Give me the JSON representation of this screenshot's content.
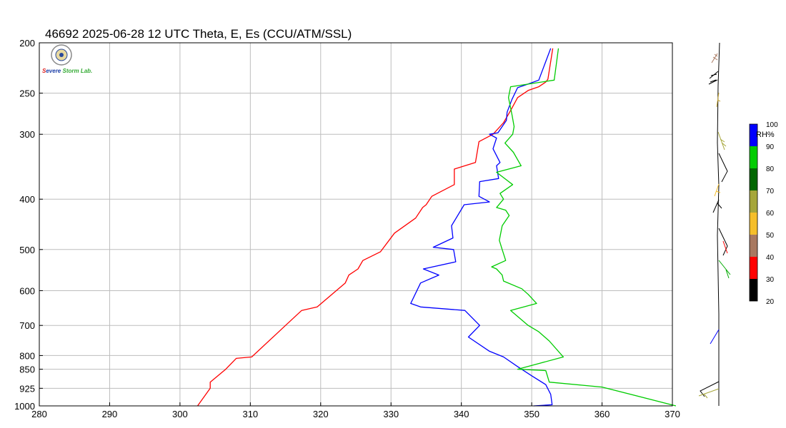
{
  "chart_data": {
    "type": "line",
    "title": "46692  2025-06-28 12 UTC  Theta, E, Es (CCU/ATM/SSL)",
    "xlabel": "",
    "ylabel": "",
    "xlim": [
      280,
      370
    ],
    "ylim": [
      1000,
      200
    ],
    "y_scale": "log",
    "grid": true,
    "x_ticks": [
      "280",
      "290",
      "300",
      "310",
      "320",
      "330",
      "340",
      "350",
      "360",
      "370"
    ],
    "y_ticks": [
      "200",
      "250",
      "300",
      "400",
      "500",
      "600",
      "700",
      "800",
      "850",
      "925",
      "1000"
    ],
    "series": [
      {
        "color": "#ff0000",
        "points": [
          [
            302.5,
            1000
          ],
          [
            304.3,
            925
          ],
          [
            304.3,
            900
          ],
          [
            306.5,
            850
          ],
          [
            308,
            810
          ],
          [
            310.2,
            805
          ],
          [
            315,
            700
          ],
          [
            317.3,
            655
          ],
          [
            319.5,
            645
          ],
          [
            323.5,
            580
          ],
          [
            324,
            560
          ],
          [
            325.3,
            545
          ],
          [
            326,
            525
          ],
          [
            328.5,
            505
          ],
          [
            330.5,
            465
          ],
          [
            333.5,
            435
          ],
          [
            334.5,
            415
          ],
          [
            335,
            410
          ],
          [
            335.8,
            395
          ],
          [
            339,
            375
          ],
          [
            339,
            350
          ],
          [
            342,
            340
          ],
          [
            342.5,
            310
          ],
          [
            344.5,
            300
          ],
          [
            346,
            285
          ],
          [
            347,
            270
          ],
          [
            348,
            255
          ],
          [
            349.5,
            247
          ],
          [
            351,
            243
          ],
          [
            352,
            238
          ],
          [
            352.3,
            235
          ],
          [
            353,
            205
          ]
        ]
      },
      {
        "color": "#0000ff",
        "points": [
          [
            350.3,
            1000
          ],
          [
            352.9,
            995
          ],
          [
            352.7,
            950
          ],
          [
            352,
            910
          ],
          [
            350,
            875
          ],
          [
            348,
            840
          ],
          [
            346,
            805
          ],
          [
            344,
            785
          ],
          [
            341,
            737
          ],
          [
            342.6,
            700
          ],
          [
            340.5,
            655
          ],
          [
            334.2,
            645
          ],
          [
            332.8,
            635
          ],
          [
            334.2,
            580
          ],
          [
            336.8,
            560
          ],
          [
            334.6,
            545
          ],
          [
            339.2,
            528
          ],
          [
            338.9,
            500
          ],
          [
            336,
            495
          ],
          [
            338.8,
            475
          ],
          [
            338.6,
            450
          ],
          [
            340.4,
            410
          ],
          [
            344,
            405
          ],
          [
            342.5,
            395
          ],
          [
            342.6,
            370
          ],
          [
            345.3,
            365
          ],
          [
            345,
            345
          ],
          [
            345.5,
            340
          ],
          [
            344.5,
            320
          ],
          [
            345,
            305
          ],
          [
            344,
            300
          ],
          [
            345.2,
            298
          ],
          [
            346.4,
            282
          ],
          [
            346.5,
            272
          ],
          [
            347.2,
            257
          ],
          [
            348,
            244
          ],
          [
            349.5,
            240
          ],
          [
            351,
            236
          ],
          [
            352.7,
            205
          ]
        ]
      },
      {
        "color": "#00cc00",
        "points": [
          [
            370.5,
            1000
          ],
          [
            360,
            920
          ],
          [
            352.5,
            900
          ],
          [
            352,
            855
          ],
          [
            348,
            850
          ],
          [
            354.5,
            805
          ],
          [
            352.5,
            750
          ],
          [
            351,
            720
          ],
          [
            349.5,
            700
          ],
          [
            347,
            655
          ],
          [
            350.7,
            635
          ],
          [
            349.5,
            610
          ],
          [
            348.6,
            595
          ],
          [
            346,
            575
          ],
          [
            345.8,
            560
          ],
          [
            345,
            545
          ],
          [
            344.3,
            540
          ],
          [
            346.3,
            525
          ],
          [
            345.8,
            500
          ],
          [
            345.4,
            480
          ],
          [
            345.8,
            450
          ],
          [
            346.8,
            430
          ],
          [
            346.3,
            420
          ],
          [
            345,
            415
          ],
          [
            346,
            400
          ],
          [
            345.5,
            390
          ],
          [
            347.3,
            375
          ],
          [
            345,
            355
          ],
          [
            348.5,
            345
          ],
          [
            347.4,
            325
          ],
          [
            346.2,
            312
          ],
          [
            347.3,
            300
          ],
          [
            347.5,
            290
          ],
          [
            347.2,
            275
          ],
          [
            346.7,
            255
          ],
          [
            347,
            243
          ],
          [
            353.2,
            236
          ],
          [
            353.8,
            205
          ]
        ]
      }
    ],
    "colorbar": {
      "label": "RH%",
      "ticks": [
        "100",
        "90",
        "80",
        "70",
        "60",
        "50",
        "40",
        "30",
        "20"
      ],
      "colors": [
        "#0000ff",
        "#00cc00",
        "#006600",
        "#a6a63a",
        "#f5be2a",
        "#a87860",
        "#ff0000",
        "#000000"
      ]
    },
    "logo_text": "Severe Storm Lab."
  }
}
